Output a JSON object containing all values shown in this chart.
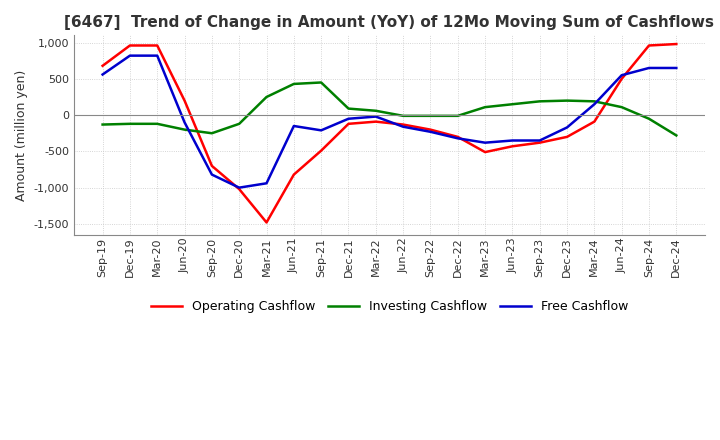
{
  "title": "[6467]  Trend of Change in Amount (YoY) of 12Mo Moving Sum of Cashflows",
  "ylabel": "Amount (million yen)",
  "ylim": [
    -1650,
    1100
  ],
  "yticks": [
    -1500,
    -1000,
    -500,
    0,
    500,
    1000
  ],
  "x_labels": [
    "Sep-19",
    "Dec-19",
    "Mar-20",
    "Jun-20",
    "Sep-20",
    "Dec-20",
    "Mar-21",
    "Jun-21",
    "Sep-21",
    "Dec-21",
    "Mar-22",
    "Jun-22",
    "Sep-22",
    "Dec-22",
    "Mar-23",
    "Jun-23",
    "Sep-23",
    "Dec-23",
    "Mar-24",
    "Jun-24",
    "Sep-24",
    "Dec-24"
  ],
  "operating": [
    680,
    960,
    960,
    200,
    -700,
    -1020,
    -1480,
    -820,
    -490,
    -120,
    -90,
    -130,
    -200,
    -300,
    -510,
    -430,
    -380,
    -300,
    -90,
    500,
    960,
    980
  ],
  "investing": [
    -130,
    -120,
    -120,
    -200,
    -250,
    -120,
    250,
    430,
    450,
    90,
    60,
    -10,
    -10,
    -10,
    110,
    150,
    190,
    200,
    190,
    110,
    -50,
    -280
  ],
  "free_cashflow": [
    560,
    820,
    820,
    -100,
    -820,
    -1000,
    -940,
    -150,
    -210,
    -50,
    -20,
    -160,
    -230,
    -320,
    -380,
    -350,
    -350,
    -170,
    150,
    550,
    650,
    650
  ],
  "operating_color": "#ff0000",
  "investing_color": "#008000",
  "free_color": "#0000cd",
  "bg_color": "#ffffff",
  "grid_color": "#c8c8c8",
  "title_color": "#333333",
  "title_fontsize": 11,
  "ylabel_fontsize": 9,
  "tick_fontsize": 8,
  "linewidth": 1.8
}
